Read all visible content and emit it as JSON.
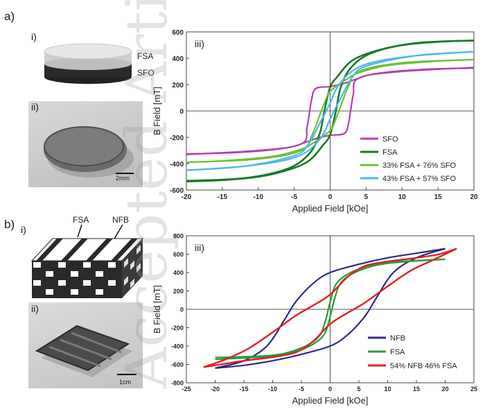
{
  "panel_a": {
    "label": "a)",
    "sub_i": "i)",
    "sub_ii": "ii)",
    "layer_top": "FSA",
    "layer_bottom": "SFO",
    "scale_bar": "2mm"
  },
  "panel_b": {
    "label": "b)",
    "sub_i": "i)",
    "sub_ii": "ii)",
    "fiber_1": "FSA",
    "fiber_2": "NFB",
    "scale_bar": "1cm"
  },
  "watermark": "Accepted Article",
  "colors": {
    "sfo": "#b040b0",
    "fsa_a": "#1a7a2a",
    "mix33": "#6cc030",
    "mix43": "#4ab8e8",
    "nfb": "#2a2a8a",
    "fsa_b": "#2a9a3a",
    "mix54": "#e02020"
  },
  "chart_data": [
    {
      "panel": "iii)",
      "type": "line",
      "xlabel": "Applied Field [kOe]",
      "ylabel": "B Field [mT]",
      "xlim": [
        -20,
        20
      ],
      "ylim": [
        -600,
        600
      ],
      "xticks": [
        -20,
        -15,
        -10,
        -5,
        0,
        5,
        10,
        15,
        20
      ],
      "yticks": [
        -600,
        -400,
        -200,
        0,
        200,
        400,
        600
      ],
      "legend_position": "bottom-right",
      "series": [
        {
          "name": "SFO",
          "color": "#b040b0",
          "width": 2.2,
          "upper": [
            [
              -20,
              -330
            ],
            [
              -10,
              -300
            ],
            [
              -4,
              -250
            ],
            [
              -3.2,
              -120
            ],
            [
              -2.6,
              80
            ],
            [
              -2,
              170
            ],
            [
              0,
              185
            ],
            [
              2,
              210
            ],
            [
              4,
              250
            ],
            [
              6,
              280
            ],
            [
              10,
              305
            ],
            [
              15,
              320
            ],
            [
              20,
              325
            ]
          ],
          "lower": [
            [
              20,
              330
            ],
            [
              10,
              300
            ],
            [
              4,
              250
            ],
            [
              3.2,
              120
            ],
            [
              2.6,
              -80
            ],
            [
              2,
              -170
            ],
            [
              0,
              -185
            ],
            [
              -2,
              -210
            ],
            [
              -4,
              -250
            ],
            [
              -6,
              -280
            ],
            [
              -10,
              -305
            ],
            [
              -15,
              -320
            ],
            [
              -20,
              -325
            ]
          ]
        },
        {
          "name": "FSA",
          "color": "#1a7a2a",
          "width": 2.6,
          "upper": [
            [
              -20,
              -530
            ],
            [
              -12,
              -510
            ],
            [
              -6,
              -440
            ],
            [
              -3,
              -330
            ],
            [
              -1.5,
              -180
            ],
            [
              -0.8,
              0
            ],
            [
              0,
              180
            ],
            [
              1,
              260
            ],
            [
              3,
              380
            ],
            [
              6,
              450
            ],
            [
              10,
              500
            ],
            [
              15,
              525
            ],
            [
              20,
              535
            ]
          ],
          "lower": [
            [
              20,
              535
            ],
            [
              12,
              515
            ],
            [
              6,
              445
            ],
            [
              3,
              335
            ],
            [
              1.5,
              185
            ],
            [
              0.8,
              0
            ],
            [
              0,
              -180
            ],
            [
              -1,
              -260
            ],
            [
              -3,
              -380
            ],
            [
              -6,
              -450
            ],
            [
              -10,
              -500
            ],
            [
              -15,
              -525
            ],
            [
              -20,
              -535
            ]
          ]
        },
        {
          "name": "33% FSA + 76% SFO",
          "color": "#6cc030",
          "width": 2.2,
          "upper": [
            [
              -20,
              -390
            ],
            [
              -10,
              -365
            ],
            [
              -4,
              -300
            ],
            [
              -2.5,
              -180
            ],
            [
              -1.5,
              -40
            ],
            [
              -0.5,
              100
            ],
            [
              0,
              150
            ],
            [
              2,
              230
            ],
            [
              4,
              290
            ],
            [
              8,
              345
            ],
            [
              14,
              375
            ],
            [
              20,
              390
            ]
          ],
          "lower": [
            [
              20,
              390
            ],
            [
              10,
              365
            ],
            [
              4,
              300
            ],
            [
              2.5,
              180
            ],
            [
              1.5,
              40
            ],
            [
              0.5,
              -100
            ],
            [
              0,
              -150
            ],
            [
              -2,
              -230
            ],
            [
              -4,
              -290
            ],
            [
              -8,
              -345
            ],
            [
              -14,
              -375
            ],
            [
              -20,
              -390
            ]
          ]
        },
        {
          "name": "43% FSA + 57% SFO",
          "color": "#4ab8e8",
          "width": 2.2,
          "upper": [
            [
              -20,
              -450
            ],
            [
              -12,
              -420
            ],
            [
              -5,
              -340
            ],
            [
              -3,
              -250
            ],
            [
              -1.5,
              -100
            ],
            [
              0,
              60
            ],
            [
              1,
              180
            ],
            [
              3,
              300
            ],
            [
              6,
              370
            ],
            [
              12,
              420
            ],
            [
              20,
              450
            ]
          ],
          "lower": [
            [
              20,
              450
            ],
            [
              12,
              420
            ],
            [
              5,
              340
            ],
            [
              3,
              250
            ],
            [
              1.5,
              100
            ],
            [
              0,
              -60
            ],
            [
              -1,
              -180
            ],
            [
              -3,
              -300
            ],
            [
              -6,
              -370
            ],
            [
              -12,
              -420
            ],
            [
              -20,
              -450
            ]
          ]
        }
      ]
    },
    {
      "panel": "iii)",
      "type": "line",
      "xlabel": "Applied Field [kOe]",
      "ylabel": "B Field [mT]",
      "xlim": [
        -25,
        25
      ],
      "ylim": [
        -800,
        800
      ],
      "xticks": [
        -25,
        -20,
        -15,
        -10,
        -5,
        0,
        5,
        10,
        15,
        20,
        25
      ],
      "yticks": [
        -800,
        -600,
        -400,
        -200,
        0,
        200,
        400,
        600,
        800
      ],
      "legend_position": "bottom-right",
      "series": [
        {
          "name": "NFB",
          "color": "#2a2a8a",
          "width": 2.2,
          "upper": [
            [
              -20,
              -640
            ],
            [
              -15,
              -560
            ],
            [
              -11,
              -400
            ],
            [
              -8,
              -120
            ],
            [
              -6,
              80
            ],
            [
              -3,
              280
            ],
            [
              0,
              400
            ],
            [
              5,
              490
            ],
            [
              10,
              560
            ],
            [
              15,
              610
            ],
            [
              20,
              660
            ]
          ],
          "lower": [
            [
              20,
              660
            ],
            [
              15,
              560
            ],
            [
              11,
              400
            ],
            [
              8,
              120
            ],
            [
              6,
              -80
            ],
            [
              3,
              -280
            ],
            [
              0,
              -400
            ],
            [
              -5,
              -490
            ],
            [
              -10,
              -560
            ],
            [
              -15,
              -610
            ],
            [
              -20,
              -640
            ]
          ]
        },
        {
          "name": "FSA",
          "color": "#2a9a3a",
          "width": 2.2,
          "upper": [
            [
              -20,
              -525
            ],
            [
              -10,
              -500
            ],
            [
              -5,
              -420
            ],
            [
              -2,
              -300
            ],
            [
              -0.8,
              -120
            ],
            [
              0,
              80
            ],
            [
              1,
              270
            ],
            [
              3,
              380
            ],
            [
              6,
              460
            ],
            [
              10,
              510
            ],
            [
              15,
              530
            ],
            [
              20,
              545
            ]
          ],
          "lower": [
            [
              20,
              545
            ],
            [
              10,
              500
            ],
            [
              5,
              420
            ],
            [
              2,
              300
            ],
            [
              0.8,
              120
            ],
            [
              0,
              -80
            ],
            [
              -1,
              -270
            ],
            [
              -3,
              -380
            ],
            [
              -6,
              -460
            ],
            [
              -10,
              -510
            ],
            [
              -15,
              -530
            ],
            [
              -20,
              -545
            ]
          ]
        },
        {
          "name": "54% NFB 46% FSA",
          "color": "#e02020",
          "width": 2.4,
          "upper": [
            [
              -22,
              -630
            ],
            [
              -18,
              -540
            ],
            [
              -14,
              -420
            ],
            [
              -10,
              -250
            ],
            [
              -6,
              -70
            ],
            [
              -3,
              40
            ],
            [
              0,
              160
            ],
            [
              3,
              350
            ],
            [
              6,
              470
            ],
            [
              10,
              520
            ],
            [
              15,
              560
            ],
            [
              19,
              600
            ],
            [
              22,
              660
            ]
          ],
          "lower": [
            [
              22,
              660
            ],
            [
              18,
              540
            ],
            [
              14,
              420
            ],
            [
              10,
              250
            ],
            [
              6,
              70
            ],
            [
              3,
              -40
            ],
            [
              0,
              -160
            ],
            [
              -3,
              -350
            ],
            [
              -6,
              -470
            ],
            [
              -10,
              -520
            ],
            [
              -15,
              -560
            ],
            [
              -19,
              -600
            ],
            [
              -22,
              -630
            ]
          ]
        }
      ]
    }
  ]
}
